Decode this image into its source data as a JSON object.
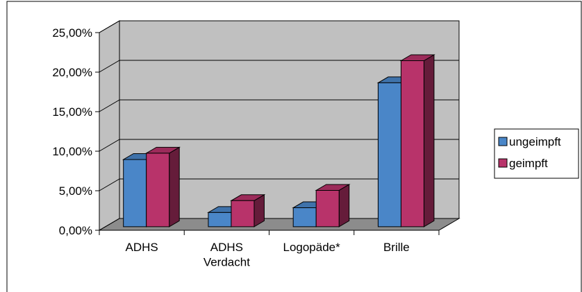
{
  "chart_data": {
    "type": "bar3d",
    "categories": [
      "ADHS",
      "ADHS\nVerdacht",
      "Logopäde*",
      "Brille"
    ],
    "series": [
      {
        "name": "ungeimpft",
        "color": "#4a86c8",
        "values": [
          8.5,
          1.8,
          2.4,
          18.2
        ]
      },
      {
        "name": "geimpft",
        "color": "#b8336a",
        "values": [
          9.3,
          3.3,
          4.6,
          21.0
        ]
      }
    ],
    "ylim": [
      0,
      25
    ],
    "yticks": [
      {
        "value": 0,
        "label": "0,00%"
      },
      {
        "value": 5,
        "label": "5,00%"
      },
      {
        "value": 10,
        "label": "10,00%"
      },
      {
        "value": 15,
        "label": "15,00%"
      },
      {
        "value": 20,
        "label": "20,00%"
      },
      {
        "value": 25,
        "label": "25,00%"
      }
    ],
    "grid": true,
    "legend": "right"
  }
}
